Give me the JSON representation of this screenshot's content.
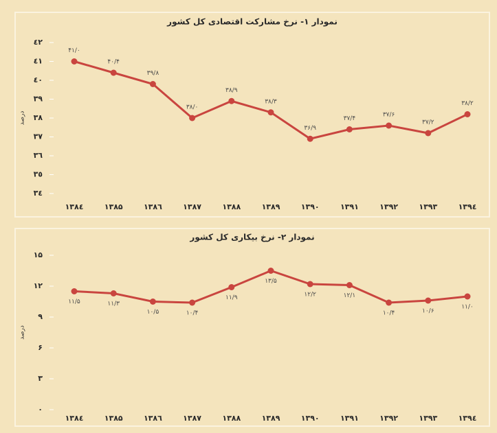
{
  "chart_data": [
    {
      "type": "line",
      "title": "نمودار ۱- نرخ مشارکت اقتصادی کل کشور",
      "y_label": "درصد",
      "categories": [
        "۱۳۸٤",
        "۱۳۸۵",
        "۱۳۸٦",
        "۱۳۸۷",
        "۱۳۸۸",
        "۱۳۸۹",
        "۱۳۹۰",
        "۱۳۹۱",
        "۱۳۹۲",
        "۱۳۹۳",
        "۱۳۹٤"
      ],
      "series": [
        {
          "name": "نرخ مشارکت اقتصادی",
          "color": "#c9453f",
          "values": [
            41.0,
            40.4,
            39.8,
            38.0,
            38.9,
            38.3,
            36.9,
            37.4,
            37.6,
            37.2,
            38.2
          ],
          "value_labels": [
            "۴۱/۰",
            "۴۰/۴",
            "۳۹/۸",
            "۳۸/۰",
            "۳۸/۹",
            "۳۸/۳",
            "۳۶/۹",
            "۳۷/۴",
            "۳۷/۶",
            "۳۷/۲",
            "۳۸/۲"
          ]
        }
      ],
      "ylim": [
        34,
        42
      ],
      "yticks": [
        {
          "value": 34,
          "label": "٣٤"
        },
        {
          "value": 35,
          "label": "٣٥"
        },
        {
          "value": 36,
          "label": "٣٦"
        },
        {
          "value": 37,
          "label": "٣٧"
        },
        {
          "value": 38,
          "label": "٣٨"
        },
        {
          "value": 39,
          "label": "٣٩"
        },
        {
          "value": 40,
          "label": "٤٠"
        },
        {
          "value": 41,
          "label": "٤١"
        },
        {
          "value": 42,
          "label": "٤٢"
        }
      ],
      "grid": false
    },
    {
      "type": "line",
      "title": "نمودار ۲- نرخ بیکاری کل کشور",
      "y_label": "درصد",
      "categories": [
        "۱۳۸٤",
        "۱۳۸۵",
        "۱۳۸٦",
        "۱۳۸۷",
        "۱۳۸۸",
        "۱۳۸۹",
        "۱۳۹۰",
        "۱۳۹۱",
        "۱۳۹۲",
        "۱۳۹۳",
        "۱۳۹٤"
      ],
      "series": [
        {
          "name": "نرخ بیکاری",
          "color": "#c9453f",
          "values": [
            11.5,
            11.3,
            10.5,
            10.4,
            11.9,
            13.5,
            12.2,
            12.1,
            10.4,
            10.6,
            11.0
          ],
          "value_labels": [
            "۱۱/۵",
            "۱۱/۳",
            "۱۰/۵",
            "۱۰/۴",
            "۱۱/۹",
            "۱۳/۵",
            "۱۲/۲",
            "۱۲/۱",
            "۱۰/۴",
            "۱۰/۶",
            "۱۱/۰"
          ]
        }
      ],
      "ylim": [
        0,
        15
      ],
      "yticks": [
        {
          "value": 0,
          "label": "۰"
        },
        {
          "value": 3,
          "label": "۳"
        },
        {
          "value": 6,
          "label": "۶"
        },
        {
          "value": 9,
          "label": "۹"
        },
        {
          "value": 12,
          "label": "۱۲"
        },
        {
          "value": 15,
          "label": "۱۵"
        }
      ],
      "grid": false
    }
  ]
}
